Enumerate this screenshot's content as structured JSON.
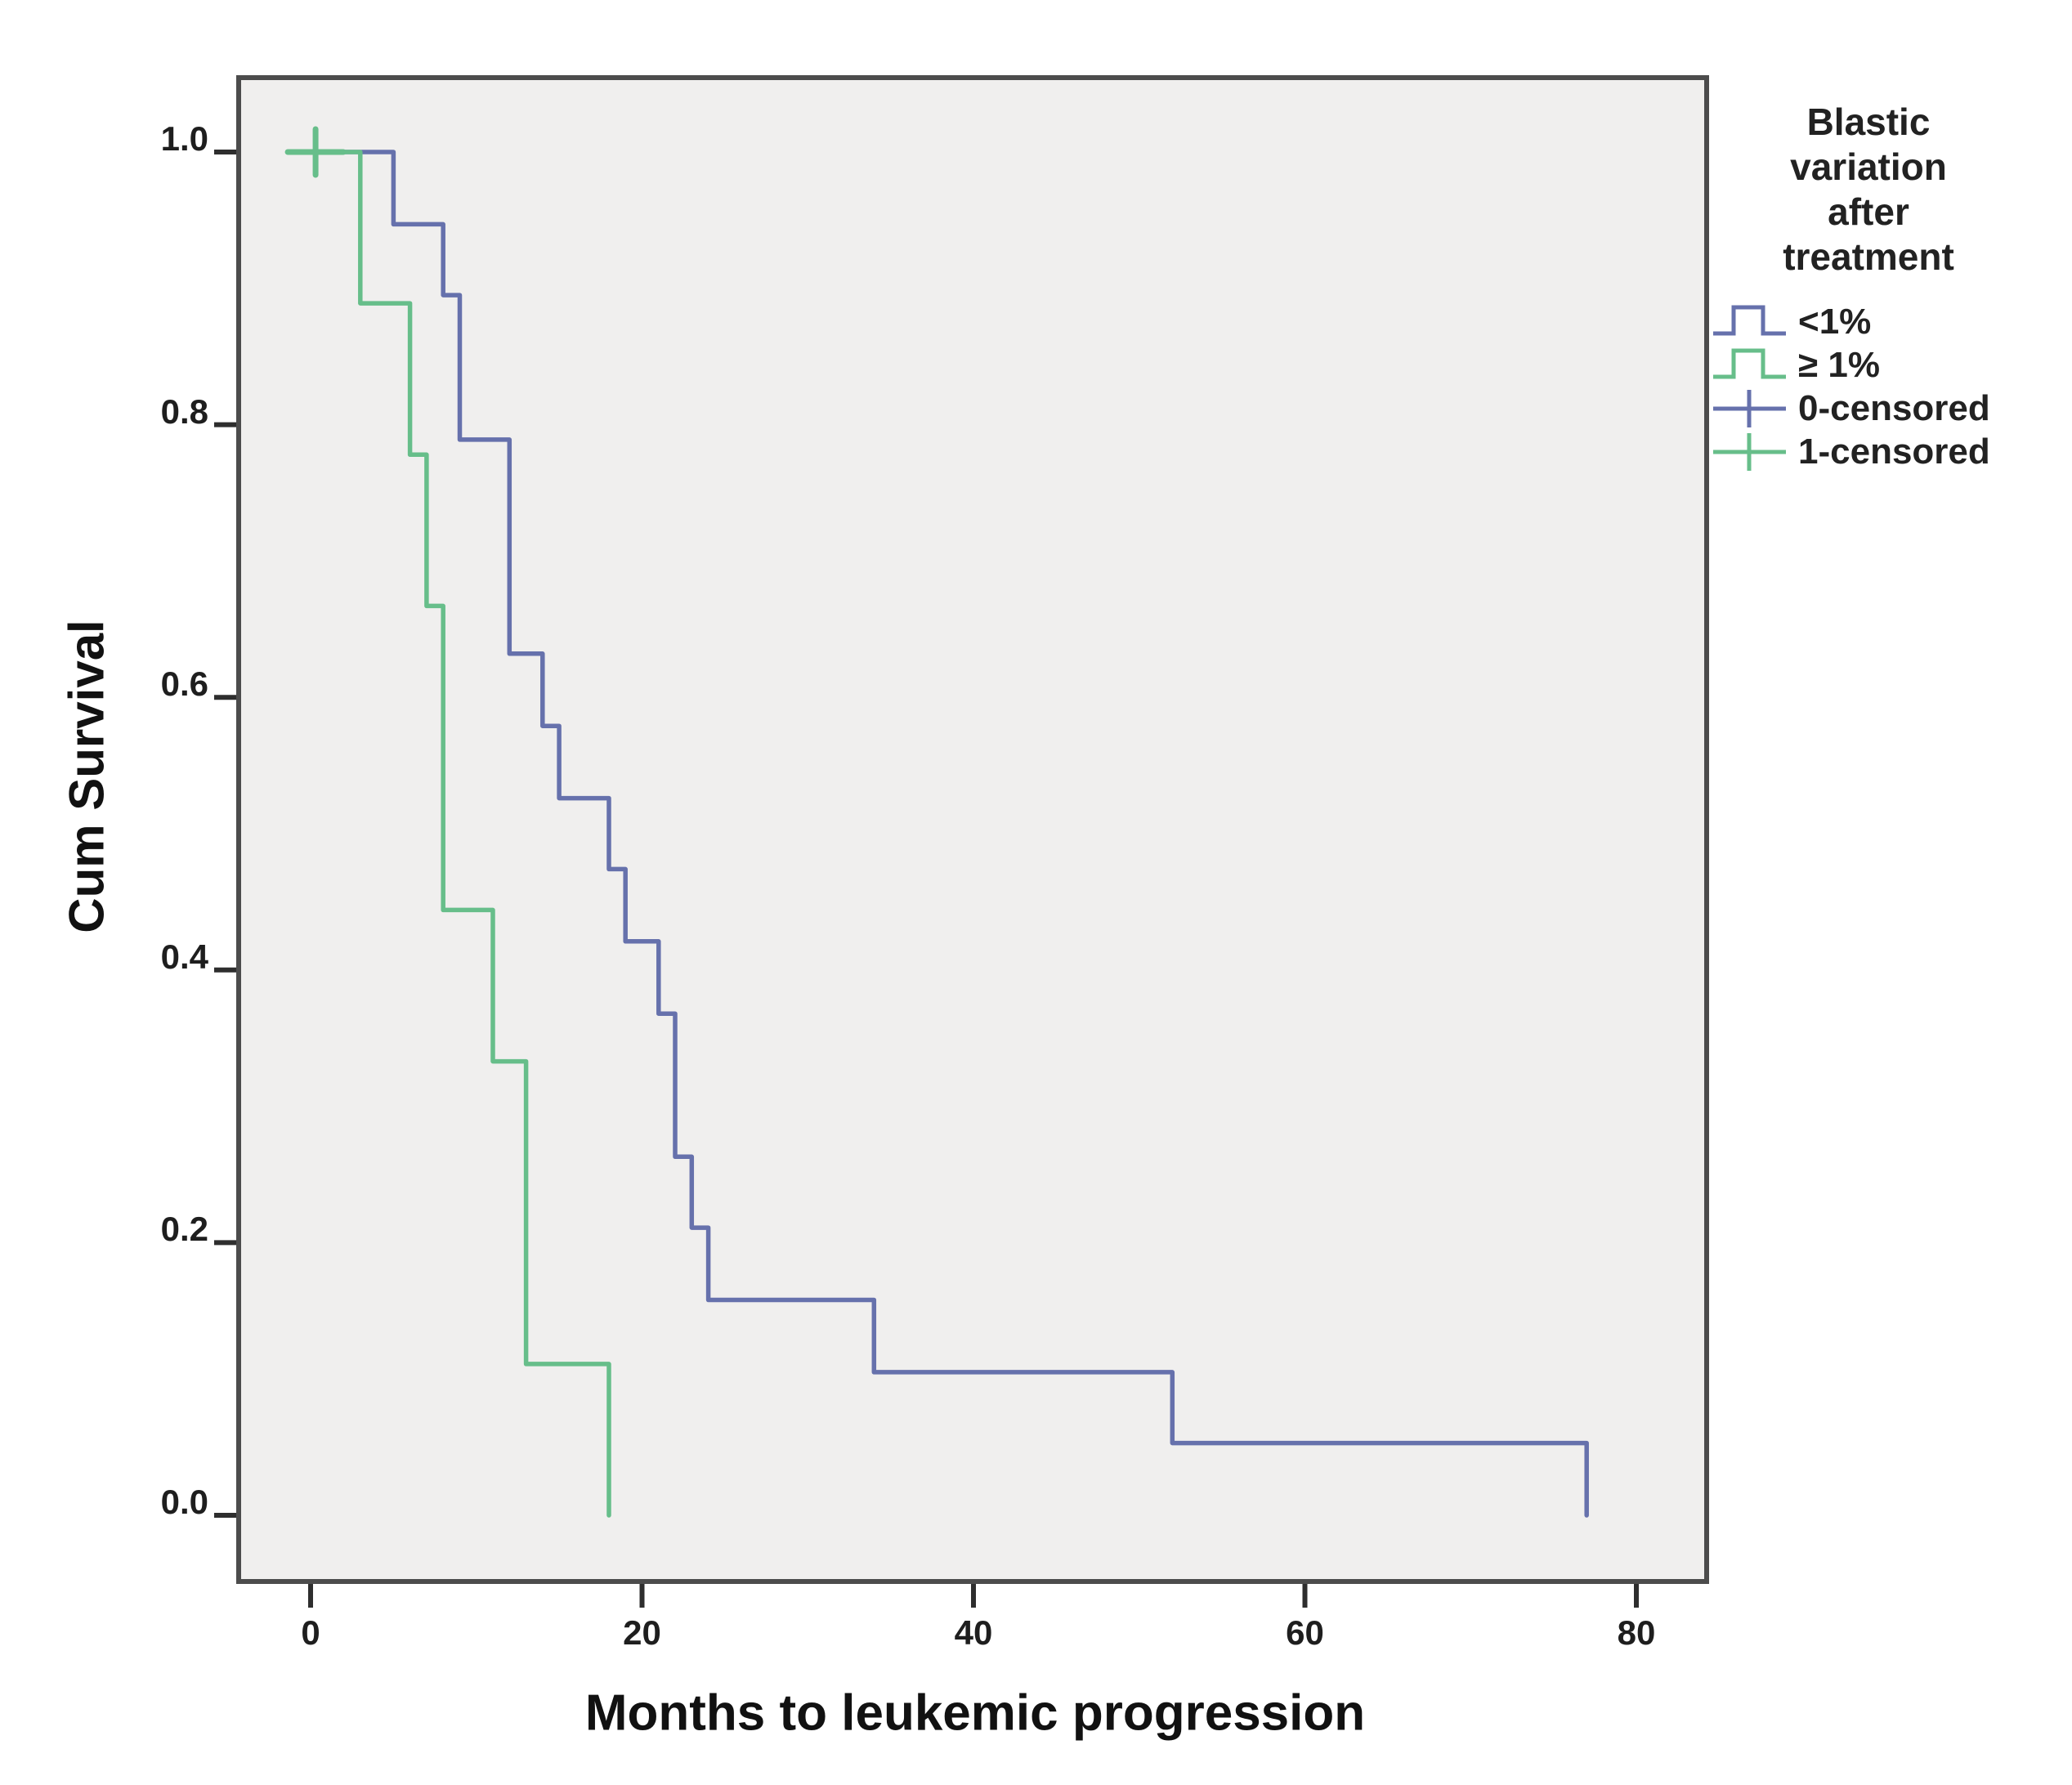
{
  "chart_data": {
    "type": "line",
    "chart_kind": "kaplan_meier_step_survival",
    "title": "",
    "xlabel": "Months to leukemic progression",
    "ylabel": "Cum Survival",
    "xlim": [
      -4.3,
      84.3
    ],
    "ylim": [
      -0.047,
      1.055
    ],
    "xtick_labels": [
      "0",
      "20",
      "40",
      "60",
      "80"
    ],
    "xtick_values": [
      0,
      20,
      40,
      60,
      80
    ],
    "ytick_labels": [
      "0.0",
      "0.2",
      "0.4",
      "0.6",
      "0.8",
      "1.0"
    ],
    "ytick_values": [
      0.0,
      0.2,
      0.4,
      0.6,
      0.8,
      1.0
    ],
    "grid": false,
    "plot_background": "#f0efee",
    "frame_color": "#4c4c4c",
    "tick_color": "#2e2e2e",
    "legend_position": "right",
    "legend_title": "Blastic variation after treatment",
    "series": [
      {
        "name": "<1%",
        "color": "#6671ac",
        "points": [
          [
            0,
            1.0
          ],
          [
            5,
            1.0
          ],
          [
            5,
            0.947
          ],
          [
            8,
            0.947
          ],
          [
            8,
            0.895
          ],
          [
            9,
            0.895
          ],
          [
            9,
            0.789
          ],
          [
            12,
            0.789
          ],
          [
            12,
            0.632
          ],
          [
            14,
            0.632
          ],
          [
            14,
            0.579
          ],
          [
            15,
            0.579
          ],
          [
            15,
            0.526
          ],
          [
            18,
            0.526
          ],
          [
            18,
            0.474
          ],
          [
            19,
            0.474
          ],
          [
            19,
            0.421
          ],
          [
            21,
            0.421
          ],
          [
            21,
            0.368
          ],
          [
            22,
            0.368
          ],
          [
            22,
            0.263
          ],
          [
            23,
            0.263
          ],
          [
            23,
            0.211
          ],
          [
            24,
            0.211
          ],
          [
            24,
            0.158
          ],
          [
            34,
            0.158
          ],
          [
            34,
            0.105
          ],
          [
            52,
            0.105
          ],
          [
            52,
            0.053
          ],
          [
            77,
            0.053
          ],
          [
            77,
            0.0
          ]
        ]
      },
      {
        "name": "≥ 1%",
        "color": "#67be8a",
        "points": [
          [
            0,
            1.0
          ],
          [
            3,
            1.0
          ],
          [
            3,
            0.889
          ],
          [
            6,
            0.889
          ],
          [
            6,
            0.778
          ],
          [
            7,
            0.778
          ],
          [
            7,
            0.667
          ],
          [
            8,
            0.667
          ],
          [
            8,
            0.444
          ],
          [
            11,
            0.444
          ],
          [
            11,
            0.333
          ],
          [
            13,
            0.333
          ],
          [
            13,
            0.111
          ],
          [
            18,
            0.111
          ],
          [
            18,
            0.0
          ]
        ]
      }
    ],
    "censor_marks": [
      {
        "series": "≥ 1%",
        "x": 0.3,
        "y": 1.0,
        "color": "#67be8a"
      }
    ],
    "legend_items": [
      {
        "label": "<1%",
        "marker": "step",
        "color": "#6671ac"
      },
      {
        "label": "≥ 1%",
        "marker": "step",
        "color": "#67be8a"
      },
      {
        "label": "0-censored",
        "marker": "plus",
        "color": "#6671ac"
      },
      {
        "label": "1-censored",
        "marker": "plus",
        "color": "#67be8a"
      }
    ]
  }
}
